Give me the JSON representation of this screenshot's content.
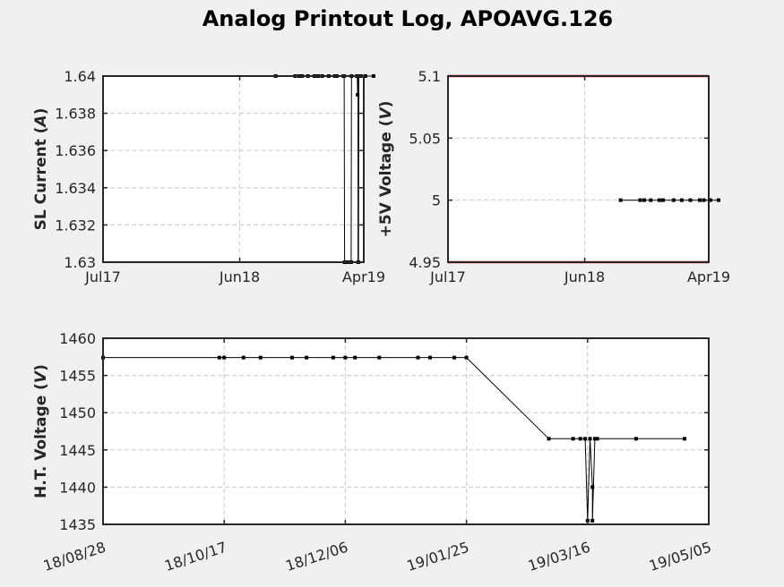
{
  "figure": {
    "title": "Analog Printout Log, APOAVG.126"
  },
  "chart_data": [
    {
      "type": "line",
      "ylabel": "SL Current",
      "yunit": "A",
      "xlim": [
        "2017-07-01",
        "2019-04-01"
      ],
      "ylim": [
        1.63,
        1.64
      ],
      "xticks": [
        {
          "value": "2017-07-01",
          "label": "Jul17"
        },
        {
          "value": "2018-06-01",
          "label": "Jun18"
        },
        {
          "value": "2019-04-01",
          "label": "Apr19"
        }
      ],
      "yticks": [
        {
          "value": 1.63,
          "label": "1.63"
        },
        {
          "value": 1.632,
          "label": "1.632"
        },
        {
          "value": 1.634,
          "label": "1.634"
        },
        {
          "value": 1.636,
          "label": "1.636"
        },
        {
          "value": 1.638,
          "label": "1.638"
        },
        {
          "value": 1.64,
          "label": "1.64"
        }
      ],
      "grid": true,
      "limit_lines": [],
      "series": [
        {
          "x": [
            "2018-08-28",
            "2018-10-15",
            "2018-10-25",
            "2018-11-01",
            "2018-11-15",
            "2018-12-01",
            "2018-12-10",
            "2018-12-20",
            "2019-01-05",
            "2019-01-20",
            "2019-01-24",
            "2019-01-25",
            "2019-02-10",
            "2019-02-12",
            "2019-02-13",
            "2019-02-20",
            "2019-03-01",
            "2019-03-02",
            "2019-03-15",
            "2019-03-16",
            "2019-03-17",
            "2019-03-18",
            "2019-03-18",
            "2019-03-19",
            "2019-03-20",
            "2019-03-25",
            "2019-04-05",
            "2019-04-25"
          ],
          "y": [
            1.64,
            1.64,
            1.64,
            1.64,
            1.64,
            1.64,
            1.64,
            1.64,
            1.64,
            1.64,
            1.64,
            1.64,
            1.64,
            1.64,
            1.63,
            1.63,
            1.63,
            1.64,
            1.64,
            1.64,
            1.639,
            1.64,
            1.63,
            1.63,
            1.64,
            1.64,
            1.64,
            1.64
          ]
        }
      ]
    },
    {
      "type": "line",
      "ylabel": "+5V Voltage",
      "yunit": "V",
      "xlim": [
        "2017-07-01",
        "2019-04-01"
      ],
      "ylim": [
        4.95,
        5.1
      ],
      "xticks": [
        {
          "value": "2017-07-01",
          "label": "Jul17"
        },
        {
          "value": "2018-06-01",
          "label": "Jun18"
        },
        {
          "value": "2019-04-01",
          "label": "Apr19"
        }
      ],
      "yticks": [
        {
          "value": 4.95,
          "label": "4.95"
        },
        {
          "value": 5.0,
          "label": "5"
        },
        {
          "value": 5.05,
          "label": "5.05"
        },
        {
          "value": 5.1,
          "label": "5.1"
        }
      ],
      "grid": true,
      "limit_lines": [
        {
          "y": 5.1,
          "color": "#e00000"
        },
        {
          "y": 4.95,
          "color": "#e00000"
        }
      ],
      "series": [
        {
          "x": [
            "2018-08-28",
            "2018-10-15",
            "2018-10-25",
            "2018-11-10",
            "2018-12-01",
            "2018-12-10",
            "2019-01-05",
            "2019-01-25",
            "2019-02-15",
            "2019-03-10",
            "2019-03-20",
            "2019-04-05",
            "2019-04-25"
          ],
          "y": [
            5,
            5,
            5,
            5,
            5,
            5,
            5,
            5,
            5,
            5,
            5,
            5,
            5
          ]
        }
      ]
    },
    {
      "type": "line",
      "ylabel": "H.T. Voltage",
      "yunit": "V",
      "xlim": [
        "2018-08-28",
        "2019-05-05"
      ],
      "ylim": [
        1435,
        1460
      ],
      "xticks": [
        {
          "value": "2018-08-28",
          "label": "18/08/28"
        },
        {
          "value": "2018-10-17",
          "label": "18/10/17"
        },
        {
          "value": "2018-12-06",
          "label": "18/12/06"
        },
        {
          "value": "2019-01-25",
          "label": "19/01/25"
        },
        {
          "value": "2019-03-16",
          "label": "19/03/16"
        },
        {
          "value": "2019-05-05",
          "label": "19/05/05"
        }
      ],
      "yticks": [
        {
          "value": 1435,
          "label": "1435"
        },
        {
          "value": 1440,
          "label": "1440"
        },
        {
          "value": 1445,
          "label": "1445"
        },
        {
          "value": 1450,
          "label": "1450"
        },
        {
          "value": 1455,
          "label": "1455"
        },
        {
          "value": 1460,
          "label": "1460"
        }
      ],
      "grid": true,
      "limit_lines": [],
      "series": [
        {
          "x": [
            "2018-08-28",
            "2018-10-15",
            "2018-10-17",
            "2018-10-25",
            "2018-11-01",
            "2018-11-14",
            "2018-11-20",
            "2018-12-01",
            "2018-12-06",
            "2018-12-10",
            "2018-12-20",
            "2019-01-05",
            "2019-01-10",
            "2019-01-20",
            "2019-01-25",
            "2019-02-28",
            "2019-03-10",
            "2019-03-13",
            "2019-03-15",
            "2019-03-16",
            "2019-03-17",
            "2019-03-18",
            "2019-03-18",
            "2019-03-19",
            "2019-03-20",
            "2019-04-05",
            "2019-04-25"
          ],
          "y": [
            1457.4,
            1457.4,
            1457.4,
            1457.4,
            1457.4,
            1457.4,
            1457.4,
            1457.4,
            1457.4,
            1457.4,
            1457.4,
            1457.4,
            1457.4,
            1457.4,
            1457.4,
            1446.5,
            1446.5,
            1446.5,
            1446.5,
            1435.5,
            1446.5,
            1440,
            1435.5,
            1446.5,
            1446.5,
            1446.5,
            1446.5
          ]
        }
      ]
    }
  ]
}
